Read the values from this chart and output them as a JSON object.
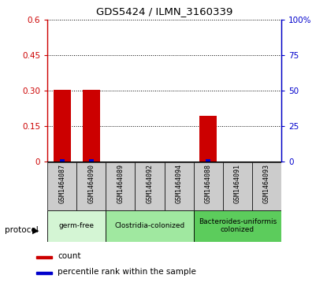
{
  "title": "GDS5424 / ILMN_3160339",
  "samples": [
    "GSM1464087",
    "GSM1464090",
    "GSM1464089",
    "GSM1464092",
    "GSM1464094",
    "GSM1464088",
    "GSM1464091",
    "GSM1464093"
  ],
  "red_values": [
    0.305,
    0.305,
    0.0,
    0.0,
    0.0,
    0.195,
    0.0,
    0.0
  ],
  "blue_values": [
    2.0,
    2.0,
    0.0,
    0.0,
    0.0,
    2.0,
    0.0,
    0.0
  ],
  "ylim_left": [
    0,
    0.6
  ],
  "ylim_right": [
    0,
    100
  ],
  "yticks_left": [
    0,
    0.15,
    0.3,
    0.45,
    0.6
  ],
  "yticks_right": [
    0,
    25,
    50,
    75,
    100
  ],
  "ytick_labels_left": [
    "0",
    "0.15",
    "0.30",
    "0.45",
    "0.6"
  ],
  "ytick_labels_right": [
    "0",
    "25",
    "50",
    "75",
    "100%"
  ],
  "groups": [
    {
      "label": "germ-free",
      "indices": [
        0,
        1
      ],
      "color": "#d4f5d4"
    },
    {
      "label": "Clostridia-colonized",
      "indices": [
        2,
        3,
        4
      ],
      "color": "#a0e8a0"
    },
    {
      "label": "Bacteroides-uniformis\ncolonized",
      "indices": [
        5,
        6,
        7
      ],
      "color": "#5ccc5c"
    }
  ],
  "protocol_label": "protocol",
  "legend_items": [
    {
      "color": "#cc0000",
      "label": "count"
    },
    {
      "color": "#0000cc",
      "label": "percentile rank within the sample"
    }
  ],
  "bar_color_red": "#cc0000",
  "bar_color_blue": "#0000cc",
  "grid_color": "#000000",
  "axis_color_left": "#cc0000",
  "axis_color_right": "#0000cc",
  "sample_box_color": "#cccccc",
  "bar_width": 0.6
}
